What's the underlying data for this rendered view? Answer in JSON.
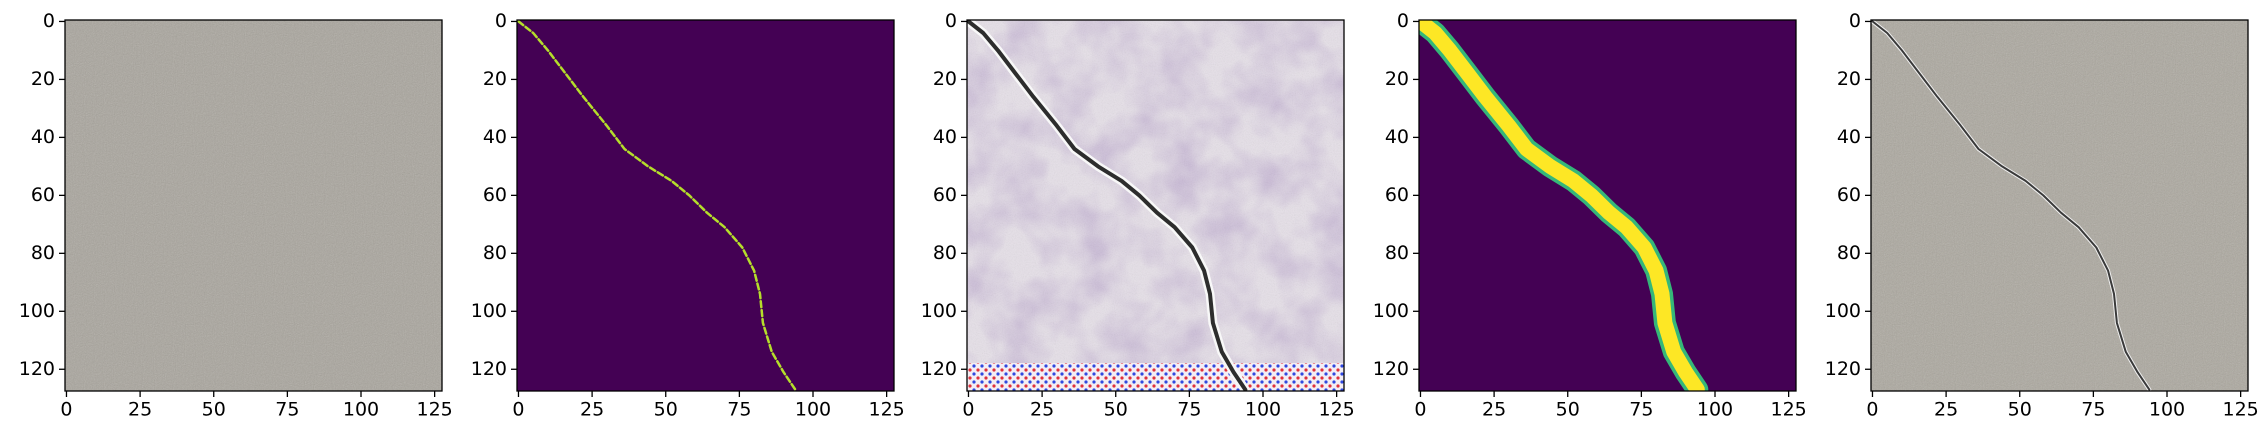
{
  "chart_data": [
    {
      "type": "image",
      "xlim": [
        -0.5,
        127.5
      ],
      "ylim": [
        127.5,
        -0.5
      ],
      "xticks": [
        0,
        25,
        50,
        75,
        100,
        125
      ],
      "yticks": [
        0,
        20,
        40,
        60,
        80,
        100,
        120
      ]
    },
    {
      "type": "image",
      "xlim": [
        -0.5,
        127.5
      ],
      "ylim": [
        127.5,
        -0.5
      ],
      "xticks": [
        0,
        25,
        50,
        75,
        100,
        125
      ],
      "yticks": [
        0,
        20,
        40,
        60,
        80,
        100,
        120
      ]
    },
    {
      "type": "image",
      "xlim": [
        -0.5,
        127.5
      ],
      "ylim": [
        127.5,
        -0.5
      ],
      "xticks": [
        0,
        25,
        50,
        75,
        100,
        125
      ],
      "yticks": [
        0,
        20,
        40,
        60,
        80,
        100,
        120
      ]
    },
    {
      "type": "image",
      "xlim": [
        -0.5,
        127.5
      ],
      "ylim": [
        127.5,
        -0.5
      ],
      "xticks": [
        0,
        25,
        50,
        75,
        100,
        125
      ],
      "yticks": [
        0,
        20,
        40,
        60,
        80,
        100,
        120
      ]
    },
    {
      "type": "image",
      "xlim": [
        -0.5,
        127.5
      ],
      "ylim": [
        127.5,
        -0.5
      ],
      "xticks": [
        0,
        25,
        50,
        75,
        100,
        125
      ],
      "yticks": [
        0,
        20,
        40,
        60,
        80,
        100,
        120
      ]
    }
  ]
}
